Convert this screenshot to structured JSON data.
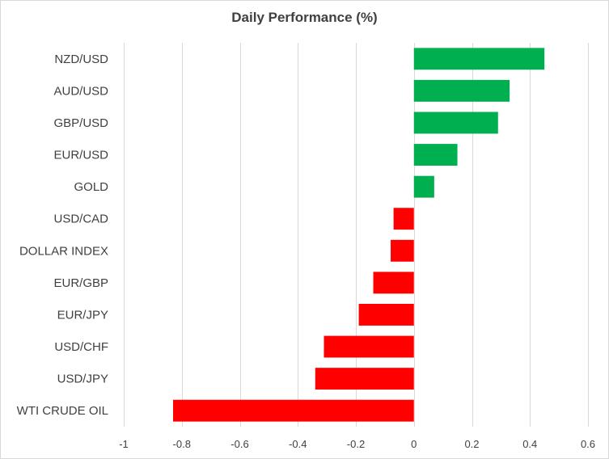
{
  "chart_data": {
    "type": "bar",
    "orientation": "horizontal",
    "title": "Daily Performance (%)",
    "xlabel": "",
    "ylabel": "",
    "categories": [
      "NZD/USD",
      "AUD/USD",
      "GBP/USD",
      "EUR/USD",
      "GOLD",
      "USD/CAD",
      "DOLLAR INDEX",
      "EUR/GBP",
      "EUR/JPY",
      "USD/CHF",
      "USD/JPY",
      "WTI CRUDE OIL"
    ],
    "values": [
      0.45,
      0.33,
      0.29,
      0.15,
      0.07,
      -0.07,
      -0.08,
      -0.14,
      -0.19,
      -0.31,
      -0.34,
      -0.83
    ],
    "xlim": [
      -1,
      0.6
    ],
    "xticks": [
      -1,
      -0.8,
      -0.6,
      -0.4,
      -0.2,
      0,
      0.2,
      0.4,
      0.6
    ],
    "xtick_labels": [
      "-1",
      "-0.8",
      "-0.6",
      "-0.4",
      "-0.2",
      "0",
      "0.2",
      "0.4",
      "0.6"
    ],
    "grid": "vertical",
    "legend": "none",
    "colors": {
      "positive": "#00b050",
      "negative": "#ff0000"
    }
  }
}
